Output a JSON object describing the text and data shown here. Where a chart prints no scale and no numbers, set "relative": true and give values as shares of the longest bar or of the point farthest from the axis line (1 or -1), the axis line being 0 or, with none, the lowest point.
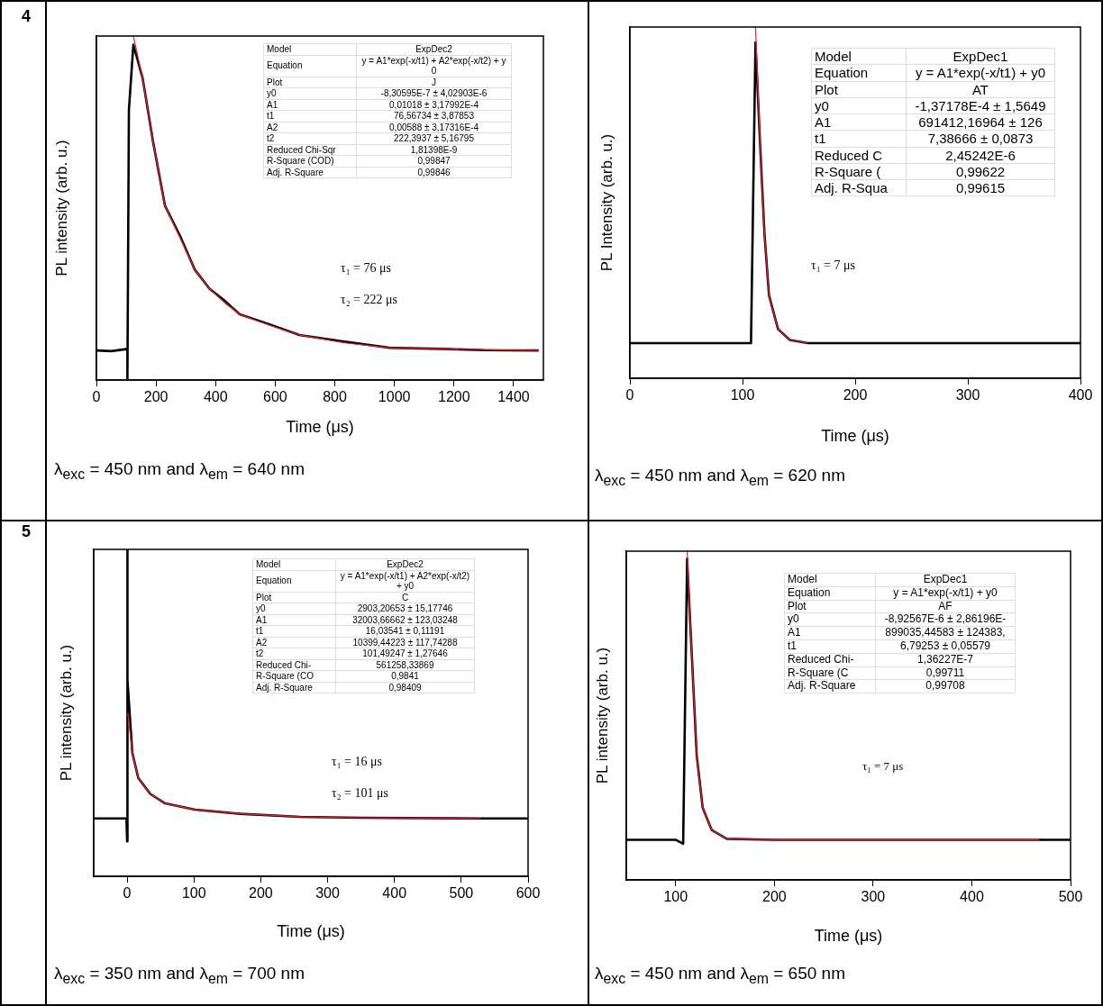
{
  "chart_data": [
    {
      "type": "line",
      "xlabel": "Time (μs)",
      "ylabel": "PL intensity (arb. u.)",
      "relative": true,
      "marker": "none",
      "xlim": [
        0,
        1500
      ],
      "xticks": [
        0,
        200,
        400,
        600,
        800,
        1000,
        1200,
        1400
      ],
      "series": [
        {
          "color": "#000000",
          "x": [
            0,
            50,
            100,
            104,
            104,
            109,
            124,
            155,
            190,
            230,
            280,
            330,
            380,
            431,
            481,
            581,
            681,
            832,
            983,
            1184,
            1300,
            1484
          ],
          "values": [
            0.086,
            0.084,
            0.09,
            0.09,
            0,
            0.785,
            0.975,
            0.878,
            0.693,
            0.507,
            0.42,
            0.321,
            0.265,
            0.23,
            0.191,
            0.162,
            0.131,
            0.112,
            0.094,
            0.09,
            0.087,
            0.086
          ]
        },
        {
          "color": "#e8262a",
          "x": [
            124,
            155,
            190,
            230,
            280,
            330,
            380,
            431,
            481,
            581,
            681,
            832,
            983,
            1184,
            1484
          ],
          "values": [
            1,
            0.878,
            0.693,
            0.507,
            0.414,
            0.321,
            0.265,
            0.224,
            0.191,
            0.159,
            0.131,
            0.108,
            0.094,
            0.09,
            0.086
          ]
        }
      ],
      "annotations": [
        "4",
        "Model",
        "ExpDec2",
        "Equation",
        "y = A1*exp(-x/t1) + A2*exp(-x/t2) + y0",
        "Plot",
        "J",
        "y0",
        "-8,30595E-7 ± 4,02903E-6",
        "A1",
        "0,01018 ± 3,17992E-4",
        "t1",
        "76,56734 ± 3,87853",
        "A2",
        "0,00588 ± 3,17316E-4",
        "t2",
        "222,3937 ± 5,16795",
        "Reduced Chi-Sqr",
        "1,81398E-9",
        "R-Square (COD)",
        "0,99847",
        "Adj. R-Square",
        "0,99846",
        "τ₁ = 76 μs",
        "τ₂ = 222 μs",
        "λ$_{exc}$ = 450 nm and λ$_{em}$ = 640 nm"
      ]
    },
    {
      "type": "line",
      "xlabel": "Time (μs)",
      "ylabel": "PL Intensity (arb. u.)",
      "relative": true,
      "marker": "none",
      "xlim": [
        0,
        400
      ],
      "xticks": [
        0,
        100,
        200,
        300,
        400
      ],
      "series": [
        {
          "color": "#000000",
          "x": [
            0,
            50,
            107.5,
            111.5,
            115.5,
            119.5,
            123.5,
            131.5,
            142,
            158,
            250,
            400
          ],
          "values": [
            0.1,
            0.1,
            0.1,
            0.956,
            0.672,
            0.41,
            0.236,
            0.14,
            0.109,
            0.1,
            0.1,
            0.1
          ]
        },
        {
          "color": "#e8262a",
          "x": [
            111.5,
            115.5,
            119.5,
            123.5,
            131.5,
            142,
            158
          ],
          "values": [
            1,
            0.672,
            0.41,
            0.236,
            0.14,
            0.109,
            0.1
          ]
        }
      ],
      "annotations": [
        "Model",
        "ExpDec1",
        "Equation",
        "y = A1*exp(-x/t1) + y0",
        "Plot",
        "AT",
        "y0",
        "-1,37178E-4 ± 1,5649",
        "A1",
        "691412,16964 ± 126",
        "t1",
        "7,38666 ± 0,0873",
        "Reduced C",
        "2,45242E-6",
        "R-Square (",
        "0,99622",
        "Adj. R-Squa",
        "0,99615",
        "τ₁ = 7 μs",
        "λ$_{exc}$ = 450 nm and λ$_{em}$ = 620 nm"
      ]
    },
    {
      "type": "line",
      "xlabel": "Time (μs)",
      "ylabel": "PL intensity (arb. u.)",
      "relative": true,
      "marker": "none",
      "xlim": [
        -50,
        600
      ],
      "xticks": [
        0,
        100,
        200,
        300,
        400,
        500,
        600
      ],
      "series": [
        {
          "color": "#000000",
          "x": [
            -50,
            -1,
            0,
            0,
            1,
            7.7,
            16.6,
            34.6,
            57,
            102,
            169.5,
            259,
            349,
            529,
            600
          ],
          "values": [
            0.177,
            0.177,
            0.107,
            1,
            0.6,
            0.379,
            0.301,
            0.252,
            0.223,
            0.204,
            0.191,
            0.182,
            0.179,
            0.177,
            0.177
          ]
        },
        {
          "color": "#e8262a",
          "x": [
            1,
            7.7,
            16.6,
            34.6,
            57,
            102,
            169.5,
            259,
            349,
            529
          ],
          "values": [
            0.5,
            0.379,
            0.301,
            0.252,
            0.223,
            0.204,
            0.191,
            0.182,
            0.179,
            0.177
          ]
        }
      ],
      "annotations": [
        "5",
        "Model",
        "ExpDec2",
        "Equation",
        "y = A1*exp(-x/t1) + A2*exp(-x/t2) + y0",
        "Plot",
        "C",
        "y0",
        "2903,20653 ± 15,17746",
        "A1",
        "32003,66662 ± 123,03248",
        "t1",
        "16,03541 ± 0,11191",
        "A2",
        "10399,44223 ± 117,74288",
        "t2",
        "101,49247 ± 1,27646",
        "Reduced Chi-",
        "561258,33869",
        "R-Square (CO",
        "0,9841",
        "Adj. R-Square",
        "0,98409",
        "τ₁ = 16 μs",
        "τ₂ = 101 μs",
        "λ$_{exc}$ = 350 nm and λ$_{em}$ = 700 nm"
      ]
    },
    {
      "type": "line",
      "xlabel": "Time (μs)",
      "ylabel": "PL intensity (arb. u.)",
      "relative": true,
      "marker": "none",
      "xlim": [
        50,
        500
      ],
      "xticks": [
        100,
        200,
        300,
        400,
        500
      ],
      "series": [
        {
          "color": "#000000",
          "x": [
            50,
            100,
            107.6,
            111.6,
            116.7,
            121.3,
            127.4,
            136.5,
            151.8,
            200,
            300,
            400,
            500
          ],
          "values": [
            0.122,
            0.122,
            0.11,
            0.977,
            0.664,
            0.38,
            0.219,
            0.152,
            0.125,
            0.122,
            0.122,
            0.122,
            0.122
          ]
        },
        {
          "color": "#e8262a",
          "x": [
            111.6,
            116.7,
            121.3,
            127.4,
            136.5,
            151.8,
            200,
            300,
            468
          ],
          "values": [
            1,
            0.664,
            0.38,
            0.219,
            0.152,
            0.125,
            0.122,
            0.122,
            0.122
          ]
        }
      ],
      "annotations": [
        "Model",
        "ExpDec1",
        "Equation",
        "y = A1*exp(-x/t1) + y0",
        "Plot",
        "AF",
        "y0",
        "-8,92567E-6 ± 2,86196E-",
        "A1",
        "899035,44583 ± 124383,",
        "t1",
        "6,79253 ± 0,05579",
        "Reduced Chi-",
        "1,36227E-7",
        "R-Square (C",
        "0,99711",
        "Adj. R-Square",
        "0,99708",
        "τ₁ = 7 μs",
        "λ$_{exc}$ = 450 nm and λ$_{em}$ = 650 nm"
      ]
    }
  ]
}
